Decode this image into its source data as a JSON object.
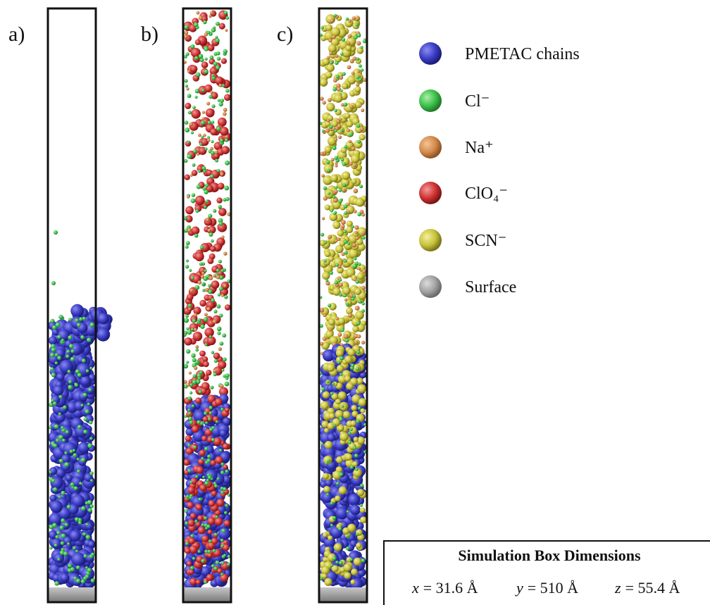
{
  "panels": [
    {
      "label": "a)"
    },
    {
      "label": "b)"
    },
    {
      "label": "c)"
    }
  ],
  "legend": [
    {
      "label": "PMETAC chains"
    },
    {
      "label": "Cl⁻"
    },
    {
      "label": "Na⁺"
    },
    {
      "label": "ClO₄⁻"
    },
    {
      "label": "SCN⁻"
    },
    {
      "label": "Surface"
    }
  ],
  "dimensions": {
    "title": "Simulation Box Dimensions",
    "items": [
      {
        "variable": "x",
        "value": "= 31.6 Å"
      },
      {
        "variable": "y",
        "value": "= 510 Å"
      },
      {
        "variable": "z",
        "value": "= 55.4 Å"
      }
    ]
  }
}
